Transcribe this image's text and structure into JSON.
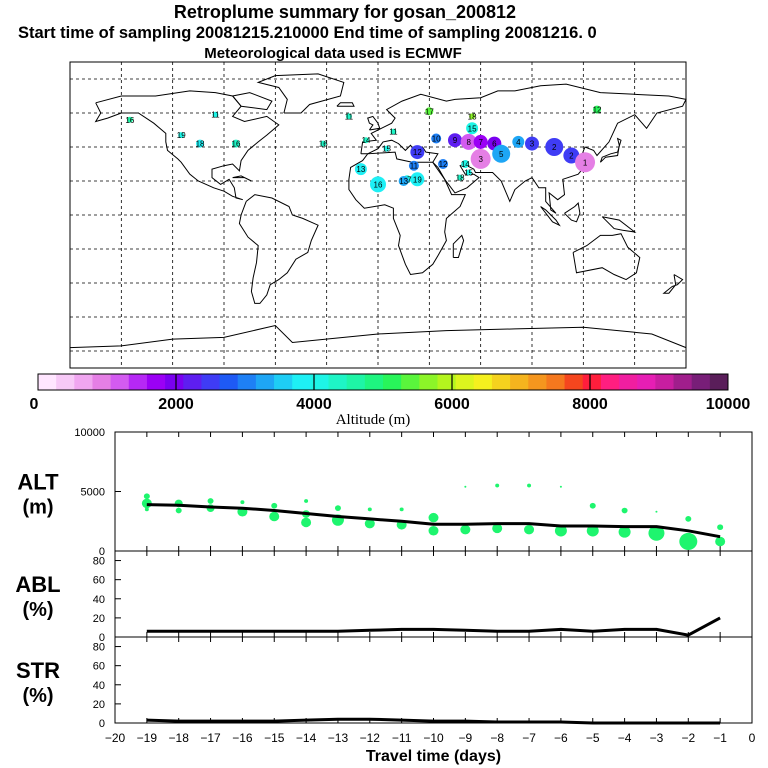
{
  "header": {
    "title": "Retroplume summary for gosan_200812",
    "line2": "Start time of sampling 20081215.210000     End time of sampling 20081216.     0",
    "line3": "Meteorological data used is ECMWF"
  },
  "colorbar": {
    "label": "Altitude (m)",
    "tick_labels": [
      "0",
      "2000",
      "4000",
      "6000",
      "8000",
      "10000"
    ],
    "colors": [
      "#ffe6ff",
      "#f7c9f7",
      "#f0a6f0",
      "#e57fe5",
      "#d35bf0",
      "#b628f5",
      "#9b00f5",
      "#7a00f0",
      "#5e1ef0",
      "#3f3cf5",
      "#1e5af5",
      "#1e80f5",
      "#1ea6f5",
      "#1ecdf5",
      "#1ef0f5",
      "#1ef5e6",
      "#1ef5c6",
      "#1ef5a6",
      "#1ef580",
      "#28f55a",
      "#5af53c",
      "#8cf528",
      "#b4f51e",
      "#dcf51e",
      "#f5f01e",
      "#f5d21e",
      "#f5b41e",
      "#f5961e",
      "#f5781e",
      "#f5461e",
      "#ff1e3c",
      "#ff1e80",
      "#f01ea0",
      "#e61eb4",
      "#c81ea0",
      "#a01e8c",
      "#781e78",
      "#5a1e5a"
    ]
  },
  "map": {
    "markers": [
      {
        "label": "12",
        "lon": 128,
        "lat": 62,
        "alt": 5200,
        "size": 4
      },
      {
        "label": "17",
        "lon": 30,
        "lat": 61,
        "alt": 5500,
        "size": 4
      },
      {
        "label": "18",
        "lon": 55,
        "lat": 58,
        "alt": 5700,
        "size": 3
      },
      {
        "label": "11",
        "lon": -17,
        "lat": 58,
        "alt": 4300,
        "size": 3
      },
      {
        "label": "16",
        "lon": -145,
        "lat": 56,
        "alt": 4500,
        "size": 3
      },
      {
        "label": "11",
        "lon": -95,
        "lat": 59,
        "alt": 4200,
        "size": 3
      },
      {
        "label": "11",
        "lon": 9,
        "lat": 49,
        "alt": 4300,
        "size": 3
      },
      {
        "label": "14",
        "lon": -7,
        "lat": 44,
        "alt": 4400,
        "size": 3
      },
      {
        "label": "15",
        "lon": 55,
        "lat": 51,
        "alt": 4200,
        "size": 6
      },
      {
        "label": "16",
        "lon": -32,
        "lat": 42,
        "alt": 4300,
        "size": 3
      },
      {
        "label": "19",
        "lon": -115,
        "lat": 47,
        "alt": 4200,
        "size": 3
      },
      {
        "label": "18",
        "lon": -104,
        "lat": 42,
        "alt": 3900,
        "size": 4
      },
      {
        "label": "16",
        "lon": -83,
        "lat": 42,
        "alt": 4300,
        "size": 4
      },
      {
        "label": "15",
        "lon": 5,
        "lat": 39,
        "alt": 4200,
        "size": 3
      },
      {
        "label": "10",
        "lon": 34,
        "lat": 45,
        "alt": 3000,
        "size": 5
      },
      {
        "label": "9",
        "lon": 45,
        "lat": 44,
        "alt": 2200,
        "size": 7
      },
      {
        "label": "8",
        "lon": 53,
        "lat": 43,
        "alt": 1200,
        "size": 8
      },
      {
        "label": "7",
        "lon": 60,
        "lat": 43,
        "alt": 1600,
        "size": 7
      },
      {
        "label": "6",
        "lon": 68,
        "lat": 42,
        "alt": 2100,
        "size": 7
      },
      {
        "label": "4",
        "lon": 82,
        "lat": 43,
        "alt": 3200,
        "size": 6
      },
      {
        "label": "3",
        "lon": 90,
        "lat": 42,
        "alt": 2600,
        "size": 7
      },
      {
        "label": "2",
        "lon": 103,
        "lat": 40,
        "alt": 2400,
        "size": 9
      },
      {
        "label": "2",
        "lon": 113,
        "lat": 35,
        "alt": 2500,
        "size": 8
      },
      {
        "label": "1",
        "lon": 121,
        "lat": 31,
        "alt": 1000,
        "size": 10
      },
      {
        "label": "3",
        "lon": 60,
        "lat": 33,
        "alt": 1000,
        "size": 10
      },
      {
        "label": "5",
        "lon": 72,
        "lat": 36,
        "alt": 3200,
        "size": 9
      },
      {
        "label": "12",
        "lon": 23,
        "lat": 37,
        "alt": 2600,
        "size": 7
      },
      {
        "label": "13",
        "lon": -10,
        "lat": 27,
        "alt": 3700,
        "size": 6
      },
      {
        "label": "11",
        "lon": 21,
        "lat": 29,
        "alt": 3000,
        "size": 5
      },
      {
        "label": "12",
        "lon": 38,
        "lat": 30,
        "alt": 3100,
        "size": 5
      },
      {
        "label": "14",
        "lon": 51,
        "lat": 30,
        "alt": 4100,
        "size": 4
      },
      {
        "label": "15",
        "lon": 53,
        "lat": 25,
        "alt": 4200,
        "size": 3
      },
      {
        "label": "18",
        "lon": 48,
        "lat": 22,
        "alt": 4300,
        "size": 3
      },
      {
        "label": "16",
        "lon": 0,
        "lat": 18,
        "alt": 3900,
        "size": 8
      },
      {
        "label": "19",
        "lon": 23,
        "lat": 21,
        "alt": 3800,
        "size": 7
      },
      {
        "label": "17",
        "lon": 17,
        "lat": 21,
        "alt": 4200,
        "size": 4
      },
      {
        "label": "13",
        "lon": 15,
        "lat": 20,
        "alt": 3200,
        "size": 5
      }
    ]
  },
  "chart_data": [
    {
      "type": "line",
      "panel": "ALT",
      "ylabel_line1": "ALT",
      "ylabel_line2": "(m)",
      "ylim": [
        0,
        10000
      ],
      "yticks": [
        0,
        5000,
        10000
      ],
      "x": [
        -19,
        -18,
        -17,
        -16,
        -15,
        -14,
        -13,
        -12,
        -11,
        -10,
        -9,
        -8,
        -7,
        -6,
        -5,
        -4,
        -3,
        -2,
        -1
      ],
      "series": [
        {
          "name": "median altitude",
          "values": [
            3900,
            3850,
            3700,
            3600,
            3400,
            3150,
            2900,
            2700,
            2500,
            2250,
            2250,
            2300,
            2300,
            2100,
            2100,
            2050,
            2050,
            1700,
            1200
          ]
        }
      ],
      "scatter_points": [
        {
          "x": -19,
          "y": 4000,
          "r": 5
        },
        {
          "x": -19,
          "y": 4600,
          "r": 3
        },
        {
          "x": -19,
          "y": 3500,
          "r": 2
        },
        {
          "x": -18,
          "y": 4000,
          "r": 4
        },
        {
          "x": -18,
          "y": 3400,
          "r": 3
        },
        {
          "x": -17,
          "y": 3600,
          "r": 4
        },
        {
          "x": -17,
          "y": 4200,
          "r": 3
        },
        {
          "x": -16,
          "y": 3300,
          "r": 5
        },
        {
          "x": -16,
          "y": 4100,
          "r": 2
        },
        {
          "x": -15,
          "y": 2900,
          "r": 5
        },
        {
          "x": -15,
          "y": 3800,
          "r": 3
        },
        {
          "x": -14,
          "y": 2400,
          "r": 5
        },
        {
          "x": -14,
          "y": 3100,
          "r": 4
        },
        {
          "x": -14,
          "y": 4200,
          "r": 2
        },
        {
          "x": -13,
          "y": 2600,
          "r": 6
        },
        {
          "x": -13,
          "y": 3600,
          "r": 3
        },
        {
          "x": -12,
          "y": 2300,
          "r": 5
        },
        {
          "x": -12,
          "y": 3500,
          "r": 2
        },
        {
          "x": -11,
          "y": 2200,
          "r": 5
        },
        {
          "x": -11,
          "y": 3500,
          "r": 2
        },
        {
          "x": -10,
          "y": 1700,
          "r": 5
        },
        {
          "x": -10,
          "y": 2800,
          "r": 5
        },
        {
          "x": -9,
          "y": 1800,
          "r": 5
        },
        {
          "x": -9,
          "y": 5400,
          "r": 1
        },
        {
          "x": -8,
          "y": 1900,
          "r": 5
        },
        {
          "x": -8,
          "y": 5500,
          "r": 2
        },
        {
          "x": -7,
          "y": 1800,
          "r": 5
        },
        {
          "x": -7,
          "y": 5500,
          "r": 2
        },
        {
          "x": -6,
          "y": 1700,
          "r": 6
        },
        {
          "x": -6,
          "y": 5400,
          "r": 1
        },
        {
          "x": -5,
          "y": 1700,
          "r": 6
        },
        {
          "x": -5,
          "y": 3800,
          "r": 3
        },
        {
          "x": -4,
          "y": 1600,
          "r": 6
        },
        {
          "x": -4,
          "y": 3400,
          "r": 3
        },
        {
          "x": -3,
          "y": 1500,
          "r": 8
        },
        {
          "x": -3,
          "y": 3300,
          "r": 1
        },
        {
          "x": -2,
          "y": 800,
          "r": 9
        },
        {
          "x": -2,
          "y": 2700,
          "r": 3
        },
        {
          "x": -1,
          "y": 800,
          "r": 5
        },
        {
          "x": -1,
          "y": 2000,
          "r": 3
        }
      ]
    },
    {
      "type": "line",
      "panel": "ABL",
      "ylabel_line1": "ABL",
      "ylabel_line2": "(%)",
      "ylim": [
        0,
        90
      ],
      "yticks": [
        0,
        20,
        40,
        60,
        80
      ],
      "x": [
        -19,
        -18,
        -17,
        -16,
        -15,
        -14,
        -13,
        -12,
        -11,
        -10,
        -9,
        -8,
        -7,
        -6,
        -5,
        -4,
        -3,
        -2,
        -1
      ],
      "series": [
        {
          "name": "ABL fraction",
          "values": [
            6,
            6,
            6,
            6,
            6,
            6,
            6,
            7,
            8,
            8,
            7,
            6,
            6,
            8,
            6,
            8,
            8,
            2,
            20
          ]
        }
      ]
    },
    {
      "type": "line",
      "panel": "STR",
      "ylabel_line1": "STR",
      "ylabel_line2": "(%)",
      "ylim": [
        0,
        90
      ],
      "yticks": [
        0,
        20,
        40,
        60,
        80
      ],
      "x": [
        -19,
        -18,
        -17,
        -16,
        -15,
        -14,
        -13,
        -12,
        -11,
        -10,
        -9,
        -8,
        -7,
        -6,
        -5,
        -4,
        -3,
        -2,
        -1
      ],
      "series": [
        {
          "name": "STR fraction",
          "values": [
            3,
            2,
            2,
            2,
            2,
            3,
            4,
            4,
            3,
            2,
            2,
            1,
            1,
            1,
            0,
            0,
            0,
            0,
            0
          ]
        }
      ],
      "xlabel": "Travel time (days)",
      "xlim": [
        -20,
        0
      ],
      "xticks": [
        -20,
        -19,
        -18,
        -17,
        -16,
        -15,
        -14,
        -13,
        -12,
        -11,
        -10,
        -9,
        -8,
        -7,
        -6,
        -5,
        -4,
        -3,
        -2,
        -1,
        0
      ]
    }
  ]
}
